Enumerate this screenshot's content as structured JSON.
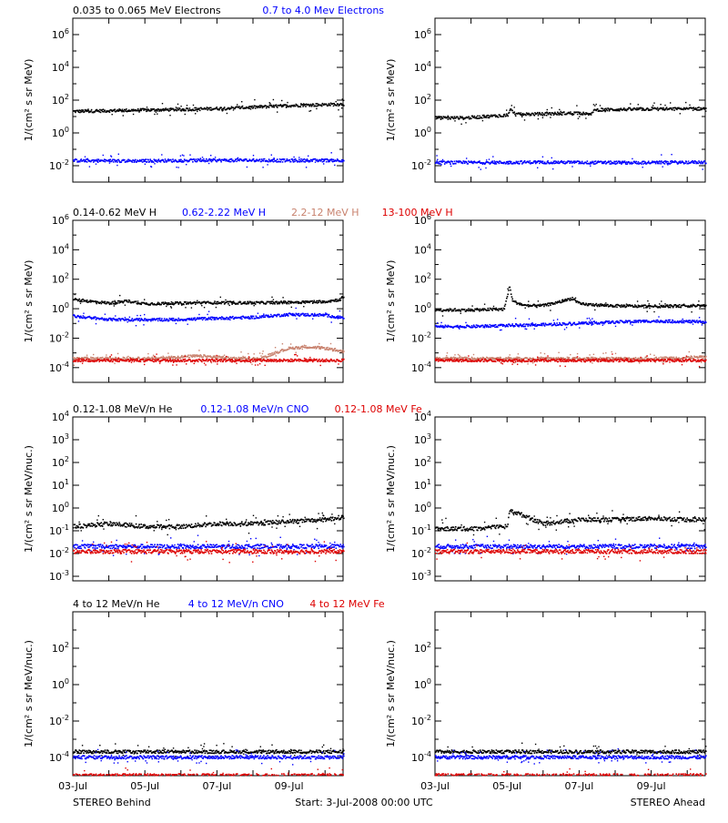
{
  "footer": {
    "left": "STEREO Behind",
    "center": "Start:  3-Jul-2008 00:00 UTC",
    "right": "STEREO Ahead"
  },
  "x_axis": {
    "range": [
      0,
      7.5
    ],
    "unit": "days from 3-Jul-2008 00:00 UTC",
    "ticks": [
      {
        "value": 0,
        "label": "03-Jul"
      },
      {
        "value": 2,
        "label": "05-Jul"
      },
      {
        "value": 4,
        "label": "07-Jul"
      },
      {
        "value": 6,
        "label": "09-Jul"
      }
    ]
  },
  "chart_data": [
    {
      "type": "scatter",
      "row": 1,
      "legend": [
        {
          "text": "0.035 to 0.065 MeV Electrons",
          "color": "#000000"
        },
        {
          "text": "0.7 to 4.0 Mev Electrons",
          "color": "#0000ff"
        }
      ],
      "ylabel": "1/(cm² s sr MeV)",
      "ylog": true,
      "ylim_exp": [
        -3,
        7
      ],
      "yticks_exp": [
        -2,
        0,
        2,
        4,
        6
      ],
      "panels": [
        {
          "spacecraft": "STEREO Behind",
          "series": [
            {
              "color": "#000000",
              "points": [
                [
                  0,
                  20
                ],
                [
                  1,
                  22
                ],
                [
                  2,
                  24
                ],
                [
                  3,
                  26
                ],
                [
                  4,
                  30
                ],
                [
                  5,
                  36
                ],
                [
                  6,
                  45
                ],
                [
                  7,
                  52
                ],
                [
                  7.5,
                  55
                ]
              ]
            },
            {
              "color": "#0000ff",
              "points": [
                [
                  0,
                  0.02
                ],
                [
                  1.5,
                  0.019
                ],
                [
                  3,
                  0.02
                ],
                [
                  4.5,
                  0.021
                ],
                [
                  6,
                  0.02
                ],
                [
                  7.5,
                  0.021
                ]
              ]
            }
          ]
        },
        {
          "spacecraft": "STEREO Ahead",
          "series": [
            {
              "color": "#000000",
              "points": [
                [
                  0,
                  8
                ],
                [
                  0.8,
                  8
                ],
                [
                  1.5,
                  10
                ],
                [
                  2.0,
                  12
                ],
                [
                  2.1,
                  30
                ],
                [
                  2.2,
                  13
                ],
                [
                  3.0,
                  14
                ],
                [
                  4.0,
                  16
                ],
                [
                  4.3,
                  12
                ],
                [
                  4.4,
                  25
                ],
                [
                  5,
                  26
                ],
                [
                  6,
                  28
                ],
                [
                  7,
                  28
                ],
                [
                  7.5,
                  30
                ]
              ]
            },
            {
              "color": "#0000ff",
              "points": [
                [
                  0,
                  0.015
                ],
                [
                  1.5,
                  0.015
                ],
                [
                  3,
                  0.016
                ],
                [
                  4.5,
                  0.015
                ],
                [
                  6,
                  0.015
                ],
                [
                  7.5,
                  0.016
                ]
              ]
            }
          ]
        }
      ]
    },
    {
      "type": "scatter",
      "row": 2,
      "legend": [
        {
          "text": "0.14-0.62 MeV H",
          "color": "#000000"
        },
        {
          "text": "0.62-2.22 MeV H",
          "color": "#0000ff"
        },
        {
          "text": "2.2-12 MeV H",
          "color": "#c8826e"
        },
        {
          "text": "13-100 MeV H",
          "color": "#dd0000"
        }
      ],
      "ylabel": "1/(cm² s sr MeV)",
      "ylog": true,
      "ylim_exp": [
        -5,
        6
      ],
      "yticks_exp": [
        -4,
        -2,
        0,
        2,
        4,
        6
      ],
      "panels": [
        {
          "spacecraft": "STEREO Behind",
          "series": [
            {
              "color": "#000000",
              "points": [
                [
                  0,
                  4
                ],
                [
                  0.5,
                  3
                ],
                [
                  1,
                  2.3
                ],
                [
                  1.5,
                  3.2
                ],
                [
                  2,
                  2.1
                ],
                [
                  3,
                  2.3
                ],
                [
                  4,
                  2.5
                ],
                [
                  5,
                  2.4
                ],
                [
                  6,
                  2.6
                ],
                [
                  7,
                  3
                ],
                [
                  7.4,
                  4
                ],
                [
                  7.5,
                  7
                ]
              ]
            },
            {
              "color": "#0000ff",
              "points": [
                [
                  0,
                  0.3
                ],
                [
                  1,
                  0.18
                ],
                [
                  2,
                  0.17
                ],
                [
                  3,
                  0.18
                ],
                [
                  4,
                  0.22
                ],
                [
                  5,
                  0.25
                ],
                [
                  6,
                  0.4
                ],
                [
                  7,
                  0.35
                ],
                [
                  7.5,
                  0.22
                ]
              ]
            },
            {
              "color": "#c8826e",
              "points": [
                [
                  0,
                  0.0004
                ],
                [
                  2,
                  0.0004
                ],
                [
                  3.5,
                  0.0006
                ],
                [
                  4.5,
                  0.0004
                ],
                [
                  5.2,
                  0.0004
                ],
                [
                  5.6,
                  0.001
                ],
                [
                  6,
                  0.002
                ],
                [
                  6.5,
                  0.0025
                ],
                [
                  7,
                  0.002
                ],
                [
                  7.5,
                  0.0012
                ]
              ]
            },
            {
              "color": "#dd0000",
              "points": [
                [
                  0,
                  0.0003
                ],
                [
                  2,
                  0.0003
                ],
                [
                  4,
                  0.0003
                ],
                [
                  6,
                  0.0003
                ],
                [
                  7.5,
                  0.0003
                ]
              ]
            }
          ]
        },
        {
          "spacecraft": "STEREO Ahead",
          "series": [
            {
              "color": "#000000",
              "points": [
                [
                  0,
                  0.8
                ],
                [
                  1,
                  0.8
                ],
                [
                  1.9,
                  0.9
                ],
                [
                  2.05,
                  30
                ],
                [
                  2.15,
                  3
                ],
                [
                  2.5,
                  1.5
                ],
                [
                  3,
                  1.6
                ],
                [
                  3.5,
                  3
                ],
                [
                  3.8,
                  5
                ],
                [
                  4,
                  2
                ],
                [
                  5,
                  1.5
                ],
                [
                  6,
                  1.4
                ],
                [
                  7,
                  1.5
                ],
                [
                  7.5,
                  1.6
                ]
              ]
            },
            {
              "color": "#0000ff",
              "points": [
                [
                  0,
                  0.06
                ],
                [
                  1,
                  0.06
                ],
                [
                  2,
                  0.07
                ],
                [
                  3,
                  0.08
                ],
                [
                  4,
                  0.1
                ],
                [
                  5,
                  0.12
                ],
                [
                  6,
                  0.14
                ],
                [
                  7,
                  0.13
                ],
                [
                  7.5,
                  0.12
                ]
              ]
            },
            {
              "color": "#c8826e",
              "points": [
                [
                  0,
                  0.0004
                ],
                [
                  2,
                  0.0004
                ],
                [
                  4,
                  0.0004
                ],
                [
                  6,
                  0.0004
                ],
                [
                  7.5,
                  0.0005
                ]
              ]
            },
            {
              "color": "#dd0000",
              "points": [
                [
                  0,
                  0.0003
                ],
                [
                  2,
                  0.0003
                ],
                [
                  4,
                  0.0003
                ],
                [
                  6,
                  0.0003
                ],
                [
                  7.5,
                  0.0003
                ]
              ]
            }
          ]
        }
      ]
    },
    {
      "type": "scatter",
      "row": 3,
      "legend": [
        {
          "text": "0.12-1.08 MeV/n He",
          "color": "#000000"
        },
        {
          "text": "0.12-1.08 MeV/n CNO",
          "color": "#0000ff"
        },
        {
          "text": "0.12-1.08 MeV Fe",
          "color": "#dd0000"
        }
      ],
      "ylabel": "1/(cm² s sr MeV/nuc.)",
      "ylog": true,
      "ylim_exp": [
        -3.2,
        4
      ],
      "yticks_exp": [
        -3,
        -2,
        -1,
        0,
        1,
        2,
        3,
        4
      ],
      "panels": [
        {
          "spacecraft": "STEREO Behind",
          "series": [
            {
              "color": "#000000",
              "points": [
                [
                  0,
                  0.15
                ],
                [
                  1,
                  0.2
                ],
                [
                  2,
                  0.15
                ],
                [
                  3,
                  0.15
                ],
                [
                  4,
                  0.2
                ],
                [
                  5,
                  0.2
                ],
                [
                  6,
                  0.25
                ],
                [
                  7,
                  0.3
                ],
                [
                  7.5,
                  0.4
                ]
              ]
            },
            {
              "color": "#0000ff",
              "points": [
                [
                  0,
                  0.02
                ],
                [
                  2,
                  0.02
                ],
                [
                  4,
                  0.02
                ],
                [
                  6,
                  0.02
                ],
                [
                  7.5,
                  0.02
                ]
              ]
            },
            {
              "color": "#dd0000",
              "points": [
                [
                  0,
                  0.012
                ],
                [
                  2,
                  0.012
                ],
                [
                  4,
                  0.012
                ],
                [
                  6,
                  0.012
                ],
                [
                  7.5,
                  0.012
                ]
              ]
            }
          ]
        },
        {
          "spacecraft": "STEREO Ahead",
          "series": [
            {
              "color": "#000000",
              "points": [
                [
                  0,
                  0.12
                ],
                [
                  1,
                  0.12
                ],
                [
                  2,
                  0.15
                ],
                [
                  2.05,
                  0.8
                ],
                [
                  3,
                  0.2
                ],
                [
                  4,
                  0.3
                ],
                [
                  5,
                  0.3
                ],
                [
                  6,
                  0.35
                ],
                [
                  7,
                  0.3
                ],
                [
                  7.5,
                  0.3
                ]
              ]
            },
            {
              "color": "#0000ff",
              "points": [
                [
                  0,
                  0.02
                ],
                [
                  2,
                  0.02
                ],
                [
                  4,
                  0.02
                ],
                [
                  6,
                  0.02
                ],
                [
                  7.5,
                  0.02
                ]
              ]
            },
            {
              "color": "#dd0000",
              "points": [
                [
                  0,
                  0.012
                ],
                [
                  2,
                  0.012
                ],
                [
                  4,
                  0.012
                ],
                [
                  6,
                  0.012
                ],
                [
                  7.5,
                  0.012
                ]
              ]
            }
          ]
        }
      ]
    },
    {
      "type": "scatter",
      "row": 4,
      "legend": [
        {
          "text": "4 to 12 MeV/n He",
          "color": "#000000"
        },
        {
          "text": "4 to 12 MeV/n CNO",
          "color": "#0000ff"
        },
        {
          "text": "4 to 12 MeV Fe",
          "color": "#dd0000"
        }
      ],
      "ylabel": "1/(cm² s sr MeV/nuc.)",
      "ylog": true,
      "ylim_exp": [
        -5,
        4
      ],
      "yticks_exp": [
        -4,
        -2,
        0,
        2
      ],
      "panels": [
        {
          "spacecraft": "STEREO Behind",
          "series": [
            {
              "color": "#000000",
              "points": [
                [
                  0,
                  0.0002
                ],
                [
                  7.5,
                  0.0002
                ]
              ]
            },
            {
              "color": "#0000ff",
              "points": [
                [
                  0,
                  0.0001
                ],
                [
                  7.5,
                  0.0001
                ]
              ]
            },
            {
              "color": "#dd0000",
              "points": [
                [
                  0,
                  1e-05
                ],
                [
                  7.5,
                  1e-05
                ]
              ]
            }
          ]
        },
        {
          "spacecraft": "STEREO Ahead",
          "series": [
            {
              "color": "#000000",
              "points": [
                [
                  0,
                  0.0002
                ],
                [
                  7.5,
                  0.0002
                ]
              ]
            },
            {
              "color": "#0000ff",
              "points": [
                [
                  0,
                  0.0001
                ],
                [
                  7.5,
                  0.0001
                ]
              ]
            },
            {
              "color": "#dd0000",
              "points": [
                [
                  0,
                  1e-05
                ],
                [
                  7.5,
                  1e-05
                ]
              ]
            }
          ]
        }
      ]
    }
  ]
}
